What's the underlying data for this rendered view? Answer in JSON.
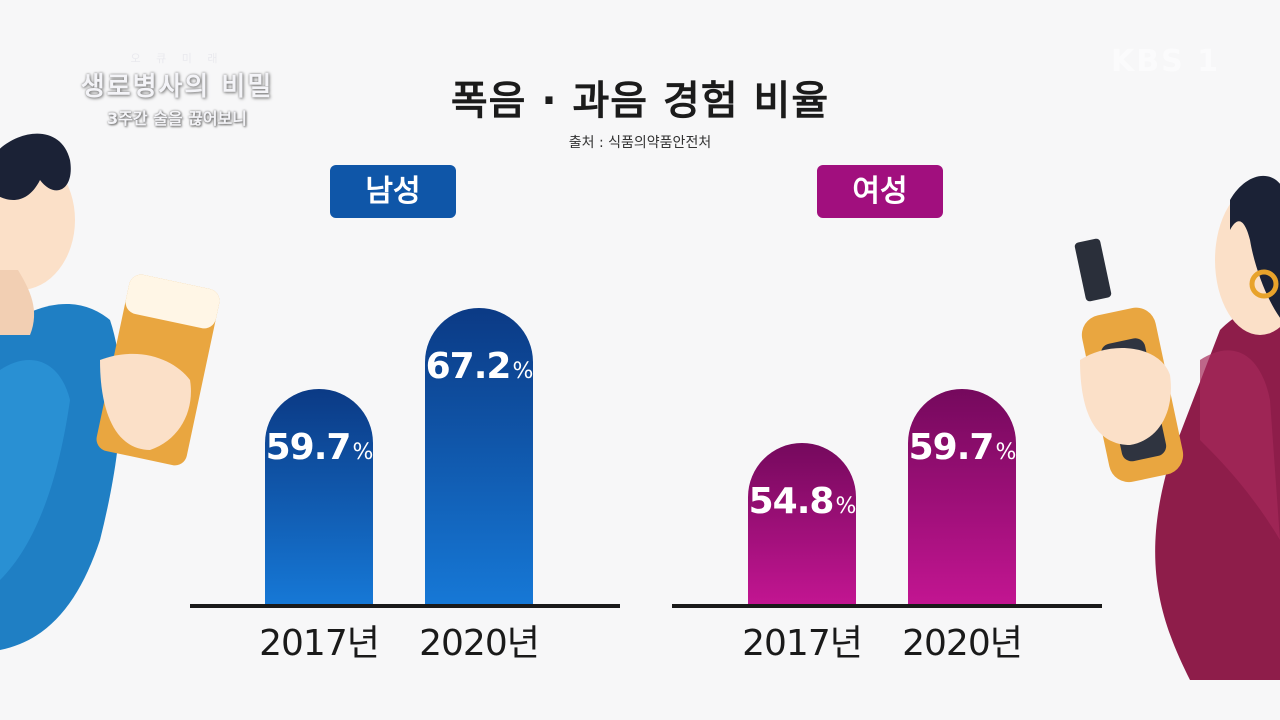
{
  "logo": {
    "top": "오 큐 미 래",
    "main": "생로병사의 비밀",
    "sub": "3주간 술을 끊어보니"
  },
  "watermark": "KBS 1",
  "chart_data": {
    "type": "bar",
    "title": "폭음 · 과음 경험 비율",
    "source": "출처 : 식품의약품안전처",
    "panels": [
      {
        "group": "남성",
        "color": "#0f56a8",
        "categories": [
          "2017년",
          "2020년"
        ],
        "values": [
          59.7,
          67.2
        ],
        "unit": "%"
      },
      {
        "group": "여성",
        "color": "#a10f7e",
        "categories": [
          "2017년",
          "2020년"
        ],
        "values": [
          54.8,
          59.7
        ],
        "unit": "%"
      }
    ]
  }
}
